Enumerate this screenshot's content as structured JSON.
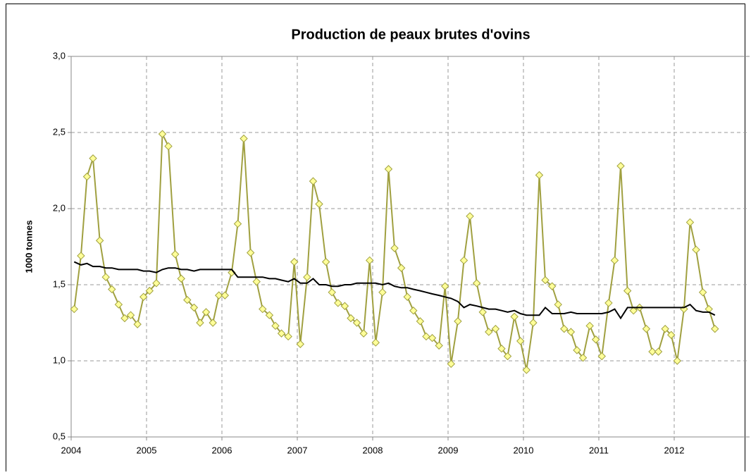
{
  "chart_data": {
    "type": "line",
    "title": "Production de peaux brutes d'ovins",
    "ylabel": "1000 tonnes",
    "x": [
      2004.04,
      2004.13,
      2004.21,
      2004.29,
      2004.38,
      2004.46,
      2004.54,
      2004.63,
      2004.71,
      2004.79,
      2004.88,
      2004.96,
      2005.04,
      2005.13,
      2005.21,
      2005.29,
      2005.38,
      2005.46,
      2005.54,
      2005.63,
      2005.71,
      2005.79,
      2005.88,
      2005.96,
      2006.04,
      2006.13,
      2006.21,
      2006.29,
      2006.38,
      2006.46,
      2006.54,
      2006.63,
      2006.71,
      2006.79,
      2006.88,
      2006.96,
      2007.04,
      2007.13,
      2007.21,
      2007.29,
      2007.38,
      2007.46,
      2007.54,
      2007.63,
      2007.71,
      2007.79,
      2007.88,
      2007.96,
      2008.04,
      2008.13,
      2008.21,
      2008.29,
      2008.38,
      2008.46,
      2008.54,
      2008.63,
      2008.71,
      2008.79,
      2008.88,
      2008.96,
      2009.04,
      2009.13,
      2009.21,
      2009.29,
      2009.38,
      2009.46,
      2009.54,
      2009.63,
      2009.71,
      2009.79,
      2009.88,
      2009.96,
      2010.04,
      2010.13,
      2010.21,
      2010.29,
      2010.38,
      2010.46,
      2010.54,
      2010.63,
      2010.71,
      2010.79,
      2010.88,
      2010.96,
      2011.04,
      2011.13,
      2011.21,
      2011.29,
      2011.38,
      2011.46,
      2011.54,
      2011.63,
      2011.71,
      2011.79,
      2011.88,
      2011.96,
      2012.04,
      2012.13,
      2012.21,
      2012.29,
      2012.38,
      2012.46,
      2012.54
    ],
    "series": [
      {
        "color": "#a0a040",
        "marker_fill": "#ffff99",
        "marker": "diamond",
        "values": [
          1.34,
          1.69,
          2.21,
          2.33,
          1.79,
          1.55,
          1.47,
          1.37,
          1.28,
          1.3,
          1.24,
          1.42,
          1.46,
          1.51,
          2.49,
          2.41,
          1.7,
          1.54,
          1.4,
          1.35,
          1.25,
          1.32,
          1.25,
          1.43,
          1.43,
          1.58,
          1.9,
          2.46,
          1.71,
          1.52,
          1.34,
          1.3,
          1.23,
          1.18,
          1.16,
          1.65,
          1.11,
          1.55,
          2.18,
          2.03,
          1.65,
          1.45,
          1.38,
          1.36,
          1.28,
          1.25,
          1.18,
          1.66,
          1.12,
          1.45,
          2.26,
          1.74,
          1.61,
          1.42,
          1.33,
          1.26,
          1.16,
          1.15,
          1.1,
          1.49,
          0.98,
          1.26,
          1.66,
          1.95,
          1.51,
          1.32,
          1.19,
          1.21,
          1.08,
          1.03,
          1.29,
          1.13,
          0.94,
          1.25,
          2.22,
          1.53,
          1.49,
          1.37,
          1.21,
          1.19,
          1.07,
          1.02,
          1.23,
          1.14,
          1.03,
          1.38,
          1.66,
          2.28,
          1.46,
          1.33,
          1.35,
          1.21,
          1.06,
          1.06,
          1.21,
          1.17,
          1.0,
          1.34,
          1.91,
          1.73,
          1.45,
          1.34,
          1.21
        ]
      },
      {
        "color": "#000000",
        "values": [
          1.65,
          1.63,
          1.64,
          1.62,
          1.62,
          1.61,
          1.61,
          1.6,
          1.6,
          1.6,
          1.6,
          1.59,
          1.59,
          1.58,
          1.6,
          1.61,
          1.61,
          1.6,
          1.6,
          1.59,
          1.6,
          1.6,
          1.6,
          1.6,
          1.6,
          1.6,
          1.55,
          1.55,
          1.55,
          1.55,
          1.55,
          1.54,
          1.54,
          1.53,
          1.52,
          1.54,
          1.51,
          1.51,
          1.54,
          1.5,
          1.5,
          1.49,
          1.49,
          1.5,
          1.5,
          1.51,
          1.51,
          1.51,
          1.51,
          1.5,
          1.51,
          1.49,
          1.48,
          1.48,
          1.47,
          1.46,
          1.45,
          1.44,
          1.43,
          1.42,
          1.41,
          1.39,
          1.35,
          1.37,
          1.36,
          1.35,
          1.34,
          1.34,
          1.33,
          1.32,
          1.33,
          1.31,
          1.3,
          1.3,
          1.3,
          1.35,
          1.31,
          1.31,
          1.31,
          1.32,
          1.31,
          1.31,
          1.31,
          1.31,
          1.31,
          1.32,
          1.34,
          1.28,
          1.35,
          1.35,
          1.35,
          1.35,
          1.35,
          1.35,
          1.35,
          1.35,
          1.35,
          1.35,
          1.37,
          1.33,
          1.32,
          1.32,
          1.3
        ]
      }
    ],
    "xlim": [
      2004,
      2013
    ],
    "xticks": [
      2004,
      2005,
      2006,
      2007,
      2008,
      2009,
      2010,
      2011,
      2012
    ],
    "ylim": [
      0.5,
      3.0
    ],
    "yticks": [
      {
        "value": 0.5,
        "label": "0,5"
      },
      {
        "value": 1.0,
        "label": "1,0"
      },
      {
        "value": 1.5,
        "label": "1,5"
      },
      {
        "value": 2.0,
        "label": "2,0"
      },
      {
        "value": 2.5,
        "label": "2,5"
      },
      {
        "value": 3.0,
        "label": "3,0"
      }
    ],
    "grid": true
  }
}
